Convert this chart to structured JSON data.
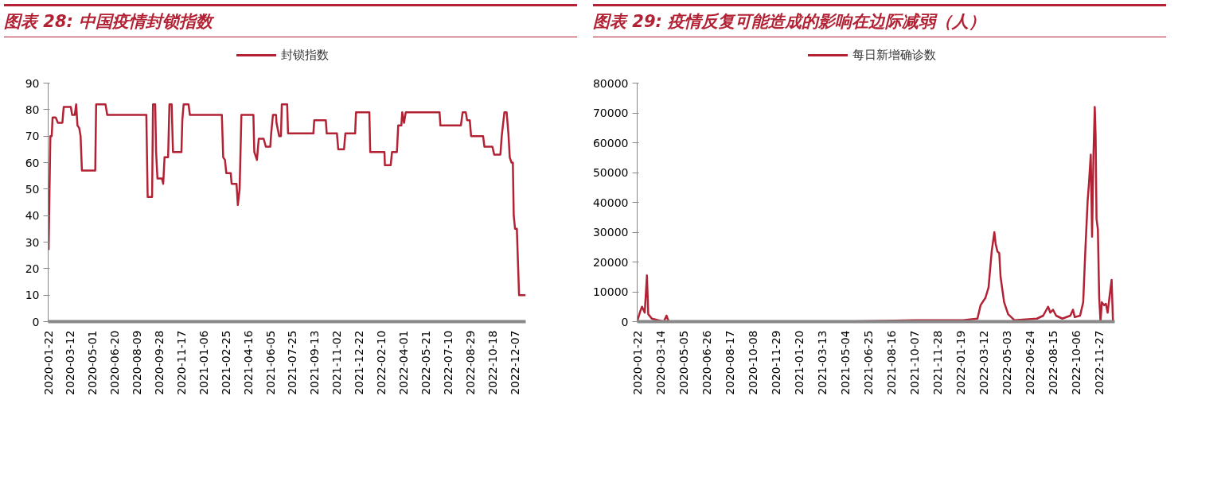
{
  "chart_data": [
    {
      "type": "line",
      "title": "图表 28: 中国疫情封锁指数",
      "legend": "top",
      "grid": false,
      "x": [
        "2020-01-23",
        "2020-01-25",
        "2020-01-27",
        "2020-01-30",
        "2020-02-01",
        "2020-02-08",
        "2020-02-13",
        "2020-02-23",
        "2020-02-26",
        "2020-03-13",
        "2020-03-16",
        "2020-03-22",
        "2020-03-25",
        "2020-03-28",
        "2020-04-01",
        "2020-04-04",
        "2020-04-07",
        "2020-05-07",
        "2020-05-09",
        "2020-05-30",
        "2020-06-03",
        "2020-08-30",
        "2020-09-02",
        "2020-09-12",
        "2020-09-14",
        "2020-09-19",
        "2020-09-21",
        "2020-09-24",
        "2020-10-04",
        "2020-10-07",
        "2020-10-10",
        "2020-10-18",
        "2020-10-21",
        "2020-10-26",
        "2020-10-29",
        "2020-11-17",
        "2020-11-19",
        "2020-11-22",
        "2020-12-03",
        "2020-12-06",
        "2021-02-16",
        "2021-02-19",
        "2021-02-23",
        "2021-02-26",
        "2021-03-08",
        "2021-03-10",
        "2021-03-21",
        "2021-03-24",
        "2021-03-28",
        "2021-04-01",
        "2021-04-28",
        "2021-04-30",
        "2021-05-06",
        "2021-05-10",
        "2021-05-21",
        "2021-05-26",
        "2021-06-05",
        "2021-06-07",
        "2021-06-11",
        "2021-06-18",
        "2021-06-19",
        "2021-06-25",
        "2021-06-29",
        "2021-07-01",
        "2021-07-13",
        "2021-07-15",
        "2021-09-10",
        "2021-09-12",
        "2021-10-08",
        "2021-10-10",
        "2021-11-02",
        "2021-11-05",
        "2021-11-18",
        "2021-11-21",
        "2021-12-13",
        "2021-12-15",
        "2022-01-14",
        "2022-01-16",
        "2022-02-17",
        "2022-02-18",
        "2022-03-03",
        "2022-03-06",
        "2022-03-17",
        "2022-03-20",
        "2022-03-27",
        "2022-03-29",
        "2022-04-02",
        "2022-04-06",
        "2022-06-21",
        "2022-06-23",
        "2022-08-08",
        "2022-08-12",
        "2022-08-19",
        "2022-08-22",
        "2022-08-28",
        "2022-08-31",
        "2022-09-27",
        "2022-09-30",
        "2022-10-18",
        "2022-10-22",
        "2022-11-05",
        "2022-11-08",
        "2022-11-14",
        "2022-11-19",
        "2022-11-23",
        "2022-11-26",
        "2022-11-30",
        "2022-12-03",
        "2022-12-05",
        "2022-12-08",
        "2022-12-12",
        "2022-12-15",
        "2022-12-17",
        "2023-01-01"
      ],
      "series": [
        {
          "name": "封锁指数",
          "color": "#b22234",
          "values": [
            27,
            49,
            70,
            70,
            77,
            77,
            75,
            75,
            81,
            81,
            78,
            78,
            82,
            74,
            73,
            70,
            57,
            57,
            82,
            82,
            78,
            78,
            47,
            47,
            82,
            82,
            64,
            54,
            54,
            52,
            62,
            62,
            82,
            82,
            64,
            64,
            76,
            82,
            82,
            78,
            78,
            62,
            61,
            56,
            56,
            52,
            52,
            44,
            50,
            78,
            78,
            64,
            61,
            69,
            69,
            66,
            66,
            71,
            78,
            78,
            75,
            70,
            70,
            82,
            82,
            71,
            71,
            76,
            76,
            71,
            71,
            65,
            65,
            71,
            71,
            79,
            79,
            64,
            64,
            59,
            59,
            64,
            64,
            74,
            74,
            79,
            75,
            79,
            79,
            74,
            74,
            79,
            79,
            76,
            76,
            70,
            70,
            66,
            66,
            63,
            63,
            70,
            79,
            79,
            71,
            62,
            60,
            60,
            40,
            35,
            35,
            20,
            10,
            10
          ]
        }
      ],
      "xlim": [
        "2020-01-22",
        "2023-01-01"
      ],
      "xticks": [
        "2020-01-22",
        "2020-03-12",
        "2020-05-01",
        "2020-06-20",
        "2020-08-09",
        "2020-09-28",
        "2020-11-17",
        "2021-01-06",
        "2021-02-25",
        "2021-04-16",
        "2021-06-05",
        "2021-07-25",
        "2021-09-13",
        "2021-11-02",
        "2021-12-22",
        "2022-02-10",
        "2022-04-01",
        "2022-05-21",
        "2022-07-10",
        "2022-08-29",
        "2022-10-18",
        "2022-12-07"
      ],
      "ylim": [
        0,
        90
      ],
      "yticks": [
        0,
        10,
        20,
        30,
        40,
        50,
        60,
        70,
        80,
        90
      ]
    },
    {
      "type": "line",
      "title": "图表 29: 疫情反复可能造成的影响在边际减弱（人）",
      "legend": "top",
      "grid": false,
      "x": [
        "2020-01-22",
        "2020-01-29",
        "2020-02-02",
        "2020-02-08",
        "2020-02-13",
        "2020-02-16",
        "2020-02-24",
        "2020-03-22",
        "2020-03-28",
        "2020-04-02",
        "2020-08-01",
        "2020-12-23",
        "2021-05-01",
        "2021-10-08",
        "2022-01-24",
        "2022-02-26",
        "2022-03-05",
        "2022-03-16",
        "2022-03-23",
        "2022-03-30",
        "2022-04-05",
        "2022-04-08",
        "2022-04-12",
        "2022-04-16",
        "2022-04-19",
        "2022-04-27",
        "2022-05-06",
        "2022-05-20",
        "2022-07-10",
        "2022-07-24",
        "2022-08-04",
        "2022-08-09",
        "2022-08-15",
        "2022-08-22",
        "2022-09-05",
        "2022-09-23",
        "2022-09-29",
        "2022-10-03",
        "2022-10-15",
        "2022-10-22",
        "2022-10-27",
        "2022-11-01",
        "2022-11-04",
        "2022-11-08",
        "2022-11-11",
        "2022-11-14",
        "2022-11-17",
        "2022-11-19",
        "2022-11-21",
        "2022-11-24",
        "2022-11-27",
        "2022-11-30",
        "2022-12-03",
        "2022-12-08",
        "2022-12-12",
        "2022-12-16",
        "2022-12-20",
        "2022-12-25",
        "2022-12-28"
      ],
      "series": [
        {
          "name": "每日新增确诊数",
          "color": "#b22234",
          "values": [
            0,
            3500,
            5000,
            3000,
            15500,
            2500,
            1000,
            0,
            2000,
            0,
            0,
            0,
            0,
            500,
            500,
            1000,
            5500,
            8000,
            11500,
            23500,
            30000,
            26000,
            23500,
            23000,
            15000,
            6500,
            2500,
            500,
            1000,
            2000,
            5000,
            3000,
            4000,
            2000,
            1000,
            2000,
            4000,
            1500,
            2000,
            6500,
            24500,
            40500,
            46500,
            56000,
            28500,
            55000,
            72000,
            62000,
            34500,
            31000,
            8000,
            0,
            6500,
            5500,
            6000,
            3000,
            8000,
            14000,
            0
          ]
        }
      ],
      "xlim": [
        "2020-01-22",
        "2023-01-01"
      ],
      "xticks": [
        "2020-01-22",
        "2020-03-14",
        "2020-05-05",
        "2020-06-26",
        "2020-08-17",
        "2020-10-08",
        "2020-11-29",
        "2021-01-20",
        "2021-03-13",
        "2021-05-04",
        "2021-06-25",
        "2021-08-16",
        "2021-10-07",
        "2021-11-28",
        "2022-01-19",
        "2022-03-12",
        "2022-05-03",
        "2022-06-24",
        "2022-08-15",
        "2022-10-06",
        "2022-11-27"
      ],
      "ylim": [
        0,
        80000
      ],
      "yticks": [
        0,
        10000,
        20000,
        30000,
        40000,
        50000,
        60000,
        70000,
        80000
      ]
    }
  ]
}
